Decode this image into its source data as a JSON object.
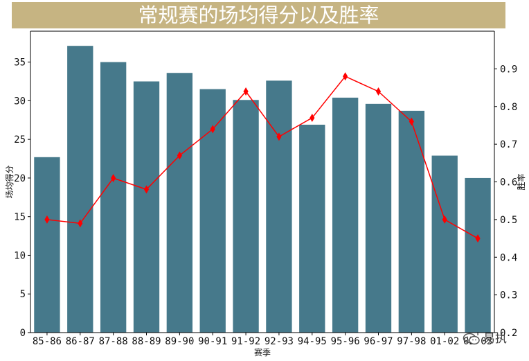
{
  "title": "常规赛的场均得分以及胜率",
  "watermark": "易执",
  "colors": {
    "banner": "#c6b482",
    "bar": "#46798b",
    "line": "#ff0000",
    "title_text": "#ffffff"
  },
  "chart_data": {
    "type": "bar+line",
    "xlabel": "赛季",
    "ylabel_left": "场均得分",
    "ylabel_right": "胜率",
    "categories": [
      "85-86",
      "86-87",
      "87-88",
      "88-89",
      "89-90",
      "90-91",
      "91-92",
      "92-93",
      "94-95",
      "95-96",
      "96-97",
      "97-98",
      "01-02",
      "02-03"
    ],
    "bar_series": {
      "name": "场均得分",
      "values": [
        22.7,
        37.1,
        35.0,
        32.5,
        33.6,
        31.5,
        30.1,
        32.6,
        26.9,
        30.4,
        29.6,
        28.7,
        22.9,
        20.0
      ]
    },
    "line_series": {
      "name": "胜率",
      "marker": "thin-diamond",
      "values": [
        0.5,
        0.49,
        0.61,
        0.58,
        0.67,
        0.74,
        0.84,
        0.72,
        0.77,
        0.88,
        0.84,
        0.76,
        0.5,
        0.45
      ]
    },
    "ylim_left": [
      0,
      39
    ],
    "yticks_left": [
      0,
      5,
      10,
      15,
      20,
      25,
      30,
      35
    ],
    "ylim_right": [
      0.2,
      1.0
    ],
    "yticks_right": [
      0.2,
      0.3,
      0.4,
      0.5,
      0.6,
      0.7,
      0.8,
      0.9
    ],
    "ytick_labels_right": [
      "0.2",
      "0.3",
      "0.4",
      "0.5",
      "0.6",
      "0.7",
      "0.8",
      "0.9"
    ],
    "grid": false,
    "legend": "none"
  }
}
